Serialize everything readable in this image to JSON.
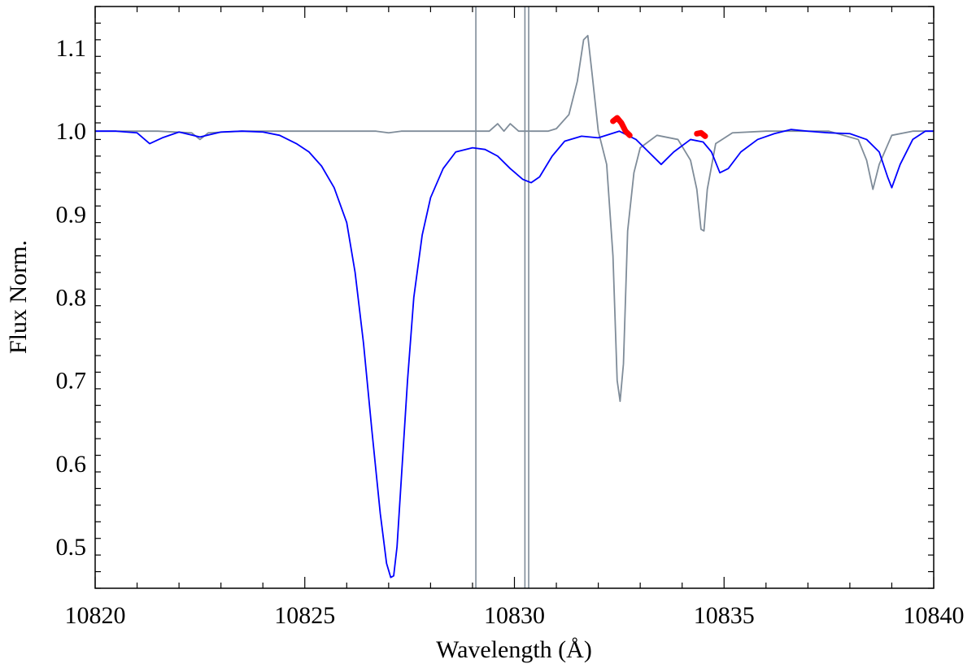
{
  "chart_data": {
    "type": "line",
    "xlabel": "Wavelength (Å)",
    "ylabel": "Flux Norm.",
    "xlim": [
      10820,
      10840
    ],
    "ylim": [
      0.45,
      1.15
    ],
    "grid": false,
    "x_ticks": [
      10820,
      10825,
      10830,
      10835,
      10840
    ],
    "x_tick_labels": [
      "10820",
      "10825",
      "10830",
      "10835",
      "10840"
    ],
    "y_ticks": [
      0.5,
      0.6,
      0.7,
      0.8,
      0.9,
      1.0,
      1.1
    ],
    "y_tick_labels": [
      "0.5",
      "0.6",
      "0.7",
      "0.8",
      "0.9",
      "1.0",
      "1.1"
    ],
    "colors": {
      "observed": "#0000ff",
      "model": "#7f8c99",
      "highlight": "#ff0000",
      "reference_lines": "#7f8c99"
    },
    "vertical_lines": [
      10829.08,
      10830.25,
      10830.34
    ],
    "series": [
      {
        "key": "observed",
        "x": [
          10820.0,
          10820.5,
          10821.0,
          10821.3,
          10821.6,
          10822.0,
          10822.5,
          10823.0,
          10823.5,
          10824.0,
          10824.4,
          10824.8,
          10825.1,
          10825.4,
          10825.7,
          10826.0,
          10826.2,
          10826.4,
          10826.6,
          10826.8,
          10826.95,
          10827.05,
          10827.12,
          10827.2,
          10827.3,
          10827.45,
          10827.6,
          10827.8,
          10828.0,
          10828.3,
          10828.6,
          10829.0,
          10829.3,
          10829.6,
          10829.9,
          10830.2,
          10830.4,
          10830.6,
          10830.9,
          10831.2,
          10831.6,
          10832.0,
          10832.5,
          10832.9,
          10833.2,
          10833.5,
          10833.8,
          10834.2,
          10834.5,
          10834.7,
          10834.9,
          10835.1,
          10835.4,
          10835.8,
          10836.2,
          10836.6,
          10837.0,
          10837.5,
          10838.0,
          10838.4,
          10838.7,
          10838.9,
          10839.0,
          10839.2,
          10839.5,
          10839.8,
          10840.0
        ],
        "y": [
          1.0,
          1.0,
          0.998,
          0.985,
          0.992,
          0.999,
          0.993,
          0.999,
          1.0,
          0.999,
          0.995,
          0.985,
          0.975,
          0.958,
          0.932,
          0.89,
          0.83,
          0.745,
          0.64,
          0.54,
          0.48,
          0.463,
          0.465,
          0.5,
          0.58,
          0.7,
          0.8,
          0.875,
          0.92,
          0.955,
          0.975,
          0.98,
          0.978,
          0.97,
          0.955,
          0.942,
          0.938,
          0.945,
          0.97,
          0.988,
          0.994,
          0.992,
          1.0,
          0.99,
          0.975,
          0.96,
          0.975,
          0.99,
          0.987,
          0.975,
          0.95,
          0.955,
          0.975,
          0.99,
          0.997,
          1.002,
          1.0,
          0.998,
          0.997,
          0.99,
          0.975,
          0.945,
          0.932,
          0.96,
          0.99,
          1.0,
          1.0
        ]
      },
      {
        "key": "model",
        "x": [
          10820.0,
          10821.5,
          10822.3,
          10822.5,
          10822.7,
          10823.5,
          10825.0,
          10826.7,
          10827.0,
          10827.3,
          10829.0,
          10829.4,
          10829.6,
          10829.75,
          10829.9,
          10830.1,
          10830.3,
          10830.8,
          10831.0,
          10831.3,
          10831.5,
          10831.65,
          10831.75,
          10831.85,
          10832.0,
          10832.2,
          10832.35,
          10832.45,
          10832.52,
          10832.6,
          10832.7,
          10832.85,
          10833.0,
          10833.4,
          10833.9,
          10834.2,
          10834.35,
          10834.45,
          10834.52,
          10834.6,
          10834.8,
          10835.2,
          10836.0,
          10837.5,
          10838.2,
          10838.4,
          10838.55,
          10838.7,
          10839.0,
          10839.5,
          10840.0
        ],
        "y": [
          1.0,
          1.0,
          0.998,
          0.99,
          0.998,
          1.0,
          1.0,
          1.0,
          0.998,
          1.0,
          1.0,
          1.0,
          1.009,
          1.0,
          1.009,
          1.0,
          1.0,
          1.0,
          1.003,
          1.02,
          1.06,
          1.11,
          1.115,
          1.07,
          1.0,
          0.96,
          0.85,
          0.7,
          0.675,
          0.72,
          0.88,
          0.95,
          0.98,
          0.995,
          0.99,
          0.965,
          0.93,
          0.882,
          0.88,
          0.93,
          0.985,
          0.998,
          1.0,
          1.0,
          0.99,
          0.965,
          0.93,
          0.96,
          0.995,
          1.0,
          1.0
        ]
      },
      {
        "key": "highlight",
        "x": [
          10832.35,
          10832.45,
          10832.55,
          10832.65,
          10832.75
        ],
        "y": [
          1.012,
          1.016,
          1.01,
          1.0,
          0.995
        ]
      },
      {
        "key": "highlight",
        "x": [
          10834.35,
          10834.45,
          10834.55
        ],
        "y": [
          0.997,
          0.998,
          0.994
        ]
      }
    ]
  }
}
